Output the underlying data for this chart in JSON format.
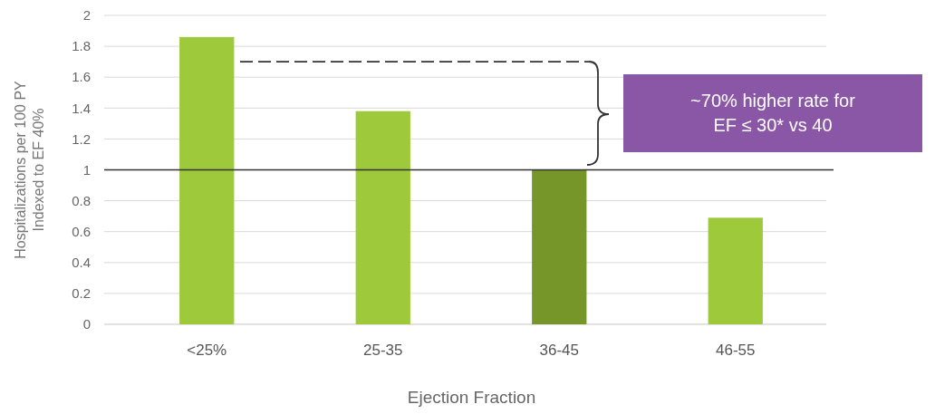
{
  "chart_data": {
    "type": "bar",
    "xlabel": "Ejection Fraction",
    "ylabel": "Hospitalizations per 100 PY\nIndexed to EF 40%",
    "categories": [
      "<25%",
      "25-35",
      "36-45",
      "46-55"
    ],
    "values": [
      1.86,
      1.38,
      1.0,
      0.69
    ],
    "colors": [
      "#9dc93b",
      "#9dc93b",
      "#76962a",
      "#9dc93b"
    ],
    "ylim": [
      0,
      2
    ],
    "yticks": [
      0,
      0.2,
      0.4,
      0.6,
      0.8,
      1,
      1.2,
      1.4,
      1.6,
      1.8,
      2
    ],
    "grid": "y",
    "ref_lines": [
      {
        "axis": "y",
        "value": 1,
        "color": "#333333"
      },
      {
        "axis": "y",
        "value": 1.7,
        "color": "#333333",
        "line_style": "dashed"
      }
    ],
    "annotations": [
      "~70% higher rate for\nEF ≤ 30* vs 40"
    ]
  }
}
